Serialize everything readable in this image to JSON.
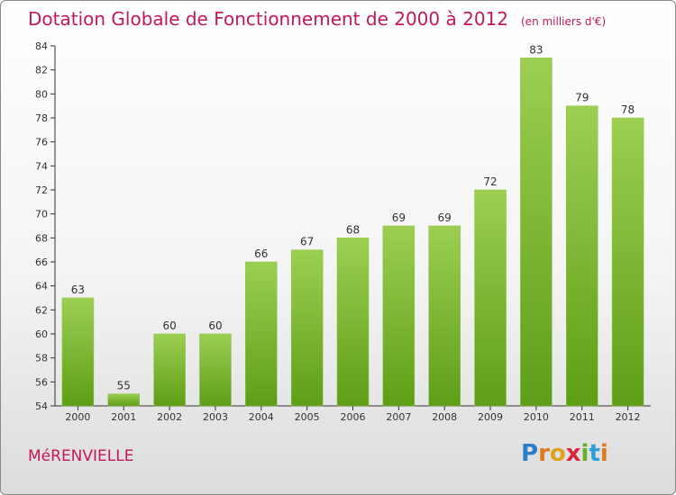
{
  "chart_data": {
    "type": "bar",
    "title": "Dotation Globale de Fonctionnement de 2000 à 2012",
    "subtitle": "(en milliers d'€)",
    "categories": [
      "2000",
      "2001",
      "2002",
      "2003",
      "2004",
      "2005",
      "2006",
      "2007",
      "2008",
      "2009",
      "2010",
      "2011",
      "2012"
    ],
    "values": [
      63,
      55,
      60,
      60,
      66,
      67,
      68,
      69,
      69,
      72,
      83,
      79,
      78
    ],
    "ylim": [
      54,
      84
    ],
    "yticks": [
      54,
      56,
      58,
      60,
      62,
      64,
      66,
      68,
      70,
      72,
      74,
      76,
      78,
      80,
      82,
      84
    ],
    "grid": false,
    "bar_color_top": "#9ccf52",
    "bar_color_bottom": "#5e9e17"
  },
  "footer": {
    "place": "MéRENVIELLE",
    "logo_letters": [
      "P",
      "r",
      "o",
      "x",
      "i",
      "t",
      "i"
    ],
    "logo_colors": [
      "#2a7fc8",
      "#e07a1c",
      "#e0a21c",
      "#d8263c",
      "#62b02a",
      "#2a9fd8",
      "#e07a1c"
    ]
  },
  "colors": {
    "title": "#c2185b",
    "axis": "#333333"
  }
}
